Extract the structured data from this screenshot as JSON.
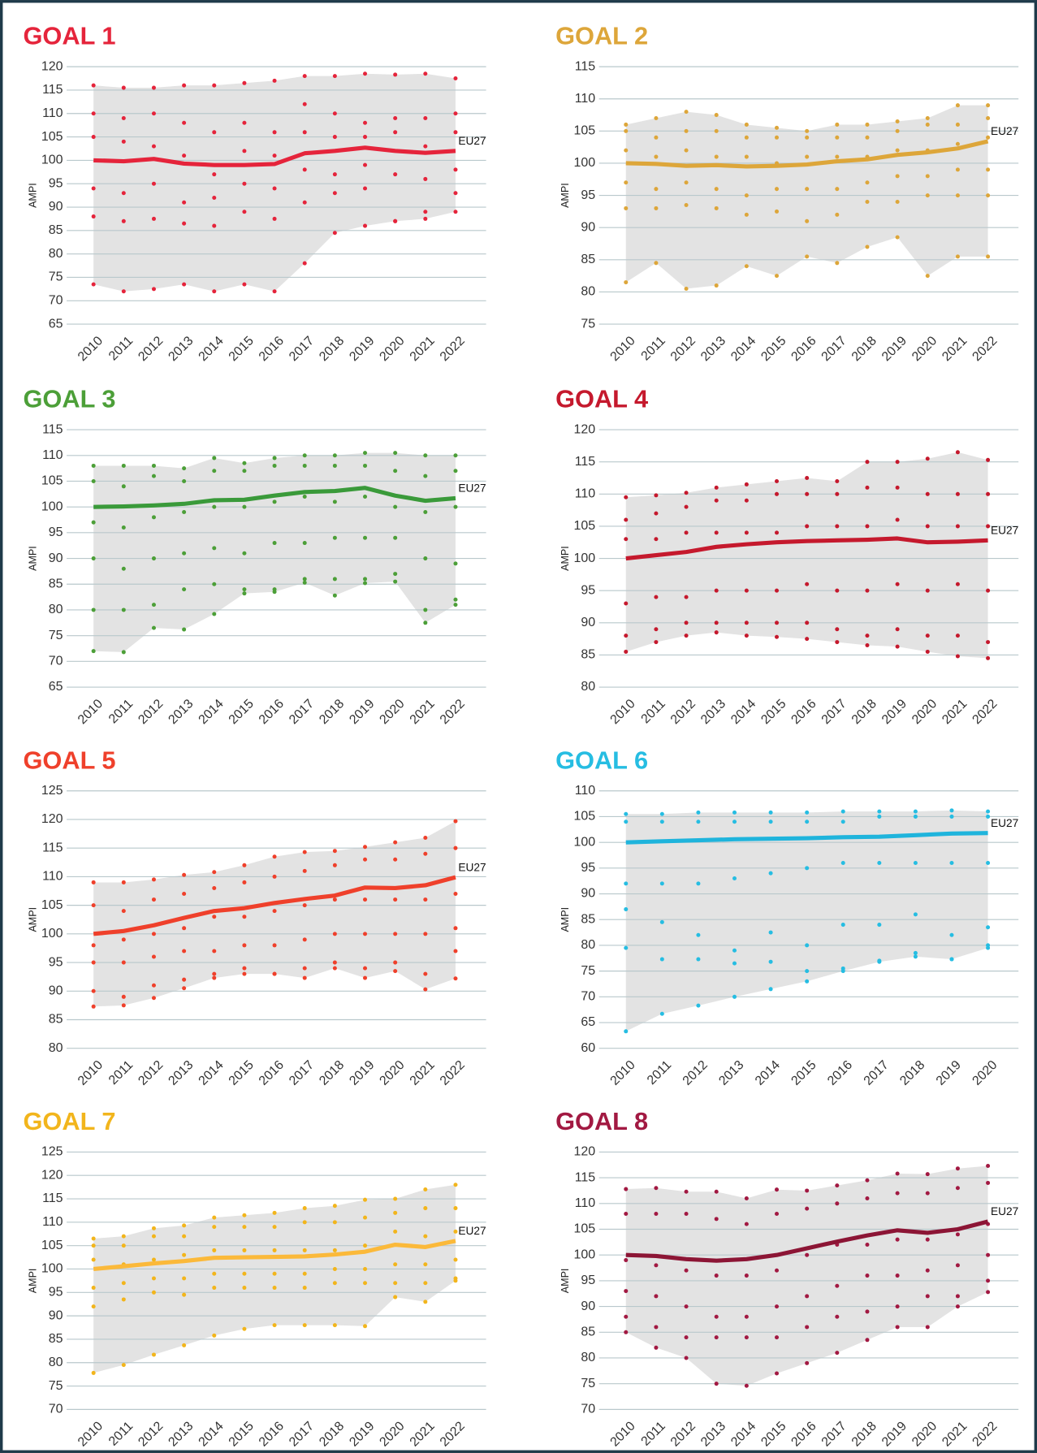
{
  "chart_data": [
    {
      "type": "line",
      "title": "GOAL 1",
      "y_label": "AMPI",
      "color": "#e5243b",
      "categories": [
        "2010",
        "2011",
        "2012",
        "2013",
        "2014",
        "2015",
        "2016",
        "2017",
        "2018",
        "2019",
        "2020",
        "2021",
        "2022"
      ],
      "ylim": [
        65,
        120
      ],
      "yticks": [
        65,
        70,
        75,
        80,
        85,
        90,
        95,
        100,
        105,
        110,
        115,
        120
      ],
      "series": [
        {
          "name": "EU27",
          "color": "#e5243b",
          "values": [
            100,
            99.8,
            100.3,
            99.3,
            99,
            99,
            99.2,
            101.5,
            102,
            102.7,
            102,
            101.6,
            102
          ]
        }
      ],
      "band": {
        "color": "#e3e3e3",
        "max": [
          116,
          115.5,
          115.5,
          116,
          116,
          116.5,
          117,
          118,
          118,
          118.5,
          118.3,
          118.5,
          117.5
        ],
        "min": [
          73.5,
          72,
          72.5,
          73.5,
          72,
          73.5,
          72,
          78,
          84.5,
          86,
          87,
          87.5,
          89
        ]
      },
      "points": [
        [
          88,
          94,
          105,
          110
        ],
        [
          87,
          93,
          104,
          109
        ],
        [
          87.5,
          95,
          103,
          110
        ],
        [
          86.5,
          91,
          101,
          108
        ],
        [
          86,
          92,
          97,
          106
        ],
        [
          89,
          95,
          102,
          108
        ],
        [
          87.5,
          94,
          101,
          106
        ],
        [
          91,
          98,
          106,
          112
        ],
        [
          93,
          97,
          105,
          110
        ],
        [
          94,
          99,
          105,
          108
        ],
        [
          87,
          97,
          106,
          109
        ],
        [
          89,
          96,
          103,
          109
        ],
        [
          93,
          98,
          106,
          110
        ]
      ]
    },
    {
      "type": "line",
      "title": "GOAL 2",
      "y_label": "AMPI",
      "color": "#dda63a",
      "categories": [
        "2010",
        "2011",
        "2012",
        "2013",
        "2014",
        "2015",
        "2016",
        "2017",
        "2018",
        "2019",
        "2020",
        "2021",
        "2022"
      ],
      "ylim": [
        75,
        115
      ],
      "yticks": [
        75,
        80,
        85,
        90,
        95,
        100,
        105,
        110,
        115
      ],
      "series": [
        {
          "name": "EU27",
          "color": "#dda63a",
          "values": [
            100,
            99.9,
            99.6,
            99.7,
            99.5,
            99.6,
            99.8,
            100.3,
            100.6,
            101.3,
            101.7,
            102.3,
            103.4
          ]
        }
      ],
      "band": {
        "color": "#e3e3e3",
        "max": [
          106,
          107,
          108,
          107.5,
          106,
          105.5,
          105,
          106,
          106,
          106.5,
          107,
          109,
          109
        ],
        "min": [
          81.5,
          84.5,
          80.5,
          81,
          84,
          82.5,
          85.5,
          84.5,
          87,
          88.5,
          82.5,
          85.5,
          85.5
        ]
      },
      "points": [
        [
          93,
          97,
          102,
          105
        ],
        [
          93,
          96,
          101,
          104
        ],
        [
          93.5,
          97,
          102,
          105
        ],
        [
          93,
          96,
          101,
          105
        ],
        [
          92,
          95,
          101,
          104
        ],
        [
          92.5,
          96,
          100,
          104
        ],
        [
          91,
          96,
          101,
          104
        ],
        [
          92,
          96,
          101,
          104
        ],
        [
          94,
          97,
          101,
          104
        ],
        [
          94,
          98,
          102,
          105
        ],
        [
          95,
          98,
          102,
          106
        ],
        [
          95,
          99,
          103,
          106
        ],
        [
          95,
          99,
          104,
          107
        ]
      ]
    },
    {
      "type": "line",
      "title": "GOAL 3",
      "y_label": "AMPI",
      "color": "#4c9f38",
      "categories": [
        "2010",
        "2011",
        "2012",
        "2013",
        "2014",
        "2015",
        "2016",
        "2017",
        "2018",
        "2019",
        "2020",
        "2021",
        "2022"
      ],
      "ylim": [
        65,
        115
      ],
      "yticks": [
        65,
        70,
        75,
        80,
        85,
        90,
        95,
        100,
        105,
        110,
        115
      ],
      "series": [
        {
          "name": "EU27",
          "color": "#3a9a3a",
          "values": [
            100,
            100.1,
            100.3,
            100.6,
            101.3,
            101.4,
            102.2,
            102.9,
            103.1,
            103.7,
            102.2,
            101.2,
            101.7
          ]
        }
      ],
      "band": {
        "color": "#e3e3e3",
        "max": [
          108,
          108,
          108,
          107.5,
          109.5,
          108.5,
          109.5,
          110,
          110,
          110.5,
          110.5,
          110,
          110
        ],
        "min": [
          72,
          71.8,
          76.5,
          76.2,
          79.2,
          83.2,
          83.5,
          85.3,
          82.8,
          85.2,
          85.5,
          77.5,
          81
        ]
      },
      "points": [
        [
          80,
          90,
          97,
          105
        ],
        [
          80,
          88,
          96,
          104
        ],
        [
          81,
          90,
          98,
          106
        ],
        [
          84,
          91,
          99,
          105
        ],
        [
          85,
          92,
          100,
          107
        ],
        [
          84,
          91,
          100,
          107
        ],
        [
          84,
          93,
          101,
          108
        ],
        [
          86,
          93,
          102,
          108
        ],
        [
          86,
          94,
          101,
          108
        ],
        [
          86,
          94,
          102,
          108
        ],
        [
          87,
          94,
          100,
          107
        ],
        [
          80,
          90,
          99,
          106
        ],
        [
          82,
          89,
          100,
          107
        ]
      ]
    },
    {
      "type": "line",
      "title": "GOAL 4",
      "y_label": "AMPI",
      "color": "#c5192d",
      "categories": [
        "2010",
        "2011",
        "2012",
        "2013",
        "2014",
        "2015",
        "2016",
        "2017",
        "2018",
        "2019",
        "2020",
        "2021",
        "2022"
      ],
      "ylim": [
        80,
        120
      ],
      "yticks": [
        80,
        85,
        90,
        95,
        100,
        105,
        110,
        115,
        120
      ],
      "series": [
        {
          "name": "EU27",
          "color": "#c5192d",
          "values": [
            100,
            100.5,
            101,
            101.8,
            102.2,
            102.5,
            102.7,
            102.8,
            102.9,
            103.1,
            102.5,
            102.6,
            102.8
          ]
        }
      ],
      "band": {
        "color": "#e3e3e3",
        "max": [
          109.5,
          109.8,
          110.2,
          111,
          111.5,
          112,
          112.5,
          112,
          115,
          115,
          115.5,
          116.5,
          115.3
        ],
        "min": [
          85.5,
          87,
          88,
          88.5,
          88,
          87.8,
          87.5,
          87,
          86.5,
          86.3,
          85.5,
          84.8,
          84.5
        ]
      },
      "points": [
        [
          88,
          93,
          103,
          106
        ],
        [
          89,
          94,
          103,
          107
        ],
        [
          90,
          94,
          104,
          108
        ],
        [
          90,
          95,
          104,
          109
        ],
        [
          90,
          95,
          104,
          109
        ],
        [
          90,
          95,
          104,
          110
        ],
        [
          90,
          96,
          105,
          110
        ],
        [
          89,
          95,
          105,
          110
        ],
        [
          88,
          95,
          105,
          111
        ],
        [
          89,
          96,
          106,
          111
        ],
        [
          88,
          95,
          105,
          110
        ],
        [
          88,
          96,
          105,
          110
        ],
        [
          87,
          95,
          105,
          110
        ]
      ]
    },
    {
      "type": "line",
      "title": "GOAL 5",
      "y_label": "AMPI",
      "color": "#ef402b",
      "categories": [
        "2010",
        "2011",
        "2012",
        "2013",
        "2014",
        "2015",
        "2016",
        "2017",
        "2018",
        "2019",
        "2020",
        "2021",
        "2022"
      ],
      "ylim": [
        80,
        125
      ],
      "yticks": [
        80,
        85,
        90,
        95,
        100,
        105,
        110,
        115,
        120,
        125
      ],
      "series": [
        {
          "name": "EU27",
          "color": "#ef402b",
          "values": [
            100,
            100.5,
            101.5,
            102.8,
            104,
            104.5,
            105.4,
            106.1,
            106.7,
            108.1,
            108,
            108.5,
            109.9
          ]
        }
      ],
      "band": {
        "color": "#e3e3e3",
        "max": [
          109,
          109,
          109.5,
          110.3,
          110.8,
          112,
          113.5,
          114.3,
          114.5,
          115.2,
          116,
          116.8,
          119.7
        ],
        "min": [
          87.3,
          87.5,
          88.8,
          90.5,
          92.3,
          93,
          93,
          92.3,
          94,
          92.3,
          93.5,
          90.3,
          92.2
        ]
      },
      "points": [
        [
          90,
          95,
          98,
          105
        ],
        [
          89,
          95,
          99,
          104
        ],
        [
          91,
          96,
          100,
          106
        ],
        [
          92,
          97,
          101,
          107
        ],
        [
          93,
          97,
          103,
          108
        ],
        [
          94,
          98,
          103,
          109
        ],
        [
          93,
          98,
          104,
          110
        ],
        [
          94,
          99,
          105,
          111
        ],
        [
          95,
          100,
          106,
          112
        ],
        [
          94,
          100,
          106,
          113
        ],
        [
          95,
          100,
          106,
          113
        ],
        [
          93,
          100,
          106,
          114
        ],
        [
          97,
          101,
          107,
          115
        ]
      ]
    },
    {
      "type": "line",
      "title": "GOAL 6",
      "y_label": "AMPI",
      "color": "#26bde2",
      "categories": [
        "2010",
        "2011",
        "2012",
        "2013",
        "2014",
        "2015",
        "2016",
        "2017",
        "2018",
        "2019",
        "2020"
      ],
      "ylim": [
        60,
        110
      ],
      "yticks": [
        60,
        65,
        70,
        75,
        80,
        85,
        90,
        95,
        100,
        105,
        110
      ],
      "series": [
        {
          "name": "EU27",
          "color": "#1fb4dc",
          "values": [
            100,
            100.2,
            100.4,
            100.6,
            100.7,
            100.8,
            101,
            101.1,
            101.4,
            101.7,
            101.8
          ]
        }
      ],
      "band": {
        "color": "#e3e3e3",
        "max": [
          105.5,
          105.5,
          105.8,
          105.8,
          105.8,
          105.8,
          106,
          106,
          106,
          106.2,
          106
        ],
        "min": [
          63.3,
          66.7,
          68.3,
          70,
          71.5,
          73,
          75,
          76.8,
          77.8,
          77.3,
          79.5
        ]
      },
      "points": [
        [
          79.5,
          87,
          92,
          104
        ],
        [
          77.3,
          84.5,
          92,
          104
        ],
        [
          77.3,
          82,
          92,
          104
        ],
        [
          76.5,
          79,
          93,
          104
        ],
        [
          76.8,
          82.5,
          94,
          104
        ],
        [
          75,
          80,
          95,
          104
        ],
        [
          75.5,
          84,
          96,
          104
        ],
        [
          77,
          84,
          96,
          105
        ],
        [
          78.5,
          86,
          96,
          105
        ],
        [
          77.3,
          82,
          96,
          105
        ],
        [
          80,
          83.5,
          96,
          105
        ]
      ]
    },
    {
      "type": "line",
      "title": "GOAL 7",
      "y_label": "AMPI",
      "color": "#f2b51c",
      "categories": [
        "2010",
        "2011",
        "2012",
        "2013",
        "2014",
        "2015",
        "2016",
        "2017",
        "2018",
        "2019",
        "2020",
        "2021",
        "2022"
      ],
      "ylim": [
        70,
        125
      ],
      "yticks": [
        70,
        75,
        80,
        85,
        90,
        95,
        100,
        105,
        110,
        115,
        120,
        125
      ],
      "series": [
        {
          "name": "EU27",
          "color": "#fbb93a",
          "values": [
            100,
            100.6,
            101.2,
            101.7,
            102.4,
            102.5,
            102.6,
            102.7,
            103.1,
            103.7,
            105.2,
            104.7,
            106
          ]
        }
      ],
      "band": {
        "color": "#e3e3e3",
        "max": [
          106.5,
          107,
          108.7,
          109.3,
          111,
          111.5,
          112,
          113,
          113.5,
          114.8,
          115,
          117,
          118
        ],
        "min": [
          77.8,
          79.5,
          81.7,
          83.7,
          85.8,
          87.2,
          88,
          88,
          88,
          87.8,
          94,
          93,
          97.5
        ]
      },
      "points": [
        [
          92,
          96,
          102,
          105
        ],
        [
          93.5,
          97,
          101,
          105
        ],
        [
          95,
          98,
          102,
          107
        ],
        [
          94.5,
          98,
          103,
          107
        ],
        [
          96,
          99,
          104,
          109
        ],
        [
          96,
          99,
          104,
          109
        ],
        [
          96,
          99,
          104,
          109
        ],
        [
          96,
          99,
          104,
          110
        ],
        [
          97,
          100,
          104,
          110
        ],
        [
          97,
          100,
          105,
          111
        ],
        [
          97,
          101,
          108,
          112
        ],
        [
          97,
          101,
          107,
          113
        ],
        [
          98,
          102,
          108,
          113
        ]
      ]
    },
    {
      "type": "line",
      "title": "GOAL 8",
      "y_label": "AMPI",
      "color": "#a21942",
      "categories": [
        "2010",
        "2011",
        "2012",
        "2013",
        "2014",
        "2015",
        "2016",
        "2017",
        "2018",
        "2019",
        "2020",
        "2021",
        "2022"
      ],
      "ylim": [
        70,
        120
      ],
      "yticks": [
        70,
        75,
        80,
        85,
        90,
        95,
        100,
        105,
        110,
        115,
        120
      ],
      "series": [
        {
          "name": "EU27",
          "color": "#8c1535",
          "values": [
            100,
            99.8,
            99.2,
            98.9,
            99.2,
            100,
            101.3,
            102.6,
            103.8,
            104.8,
            104.3,
            105,
            106.5
          ]
        }
      ],
      "band": {
        "color": "#e3e3e3",
        "max": [
          112.8,
          113,
          112.3,
          112.3,
          111,
          112.7,
          112.5,
          113.5,
          114.5,
          115.8,
          115.7,
          116.8,
          117.3
        ],
        "min": [
          85,
          82,
          80,
          75,
          74.6,
          77,
          79,
          81,
          83.5,
          86,
          86,
          90,
          92.8
        ]
      },
      "points": [
        [
          88,
          93,
          99,
          108
        ],
        [
          86,
          92,
          98,
          108
        ],
        [
          84,
          90,
          97,
          108
        ],
        [
          84,
          88,
          96,
          107
        ],
        [
          84,
          88,
          96,
          106
        ],
        [
          84,
          90,
          97,
          108
        ],
        [
          86,
          92,
          100,
          109
        ],
        [
          88,
          94,
          102,
          110
        ],
        [
          89,
          96,
          102,
          111
        ],
        [
          90,
          96,
          103,
          112
        ],
        [
          92,
          97,
          103,
          112
        ],
        [
          92,
          98,
          104,
          113
        ],
        [
          95,
          100,
          106,
          114
        ]
      ]
    }
  ]
}
